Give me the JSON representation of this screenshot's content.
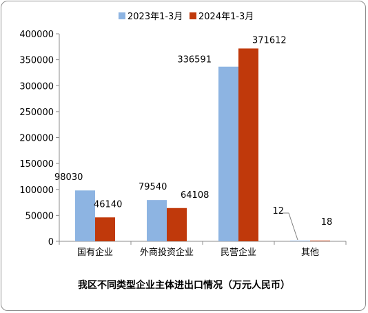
{
  "chart_data": {
    "type": "bar",
    "title": "我区不同类型企业主体进出口情况（万元人民币）",
    "categories": [
      "国有企业",
      "外商投资企业",
      "民营企业",
      "其他"
    ],
    "series": [
      {
        "name": "2023年1-3月",
        "values": [
          98030,
          79540,
          336591,
          12
        ],
        "labels": [
          "98030",
          "79540",
          "336591",
          "12"
        ]
      },
      {
        "name": "2024年1-3月",
        "values": [
          46140,
          64108,
          371612,
          18
        ],
        "labels": [
          "46140",
          "64108",
          "371612",
          "18"
        ]
      }
    ],
    "ylim": [
      0,
      400000
    ],
    "yticks": [
      "0",
      "50000",
      "100000",
      "150000",
      "200000",
      "250000",
      "300000",
      "350000",
      "400000"
    ],
    "legend_position": "top",
    "grid": false
  },
  "colors": {
    "series_2023": "#8db4e2",
    "series_2024": "#c0390b"
  }
}
